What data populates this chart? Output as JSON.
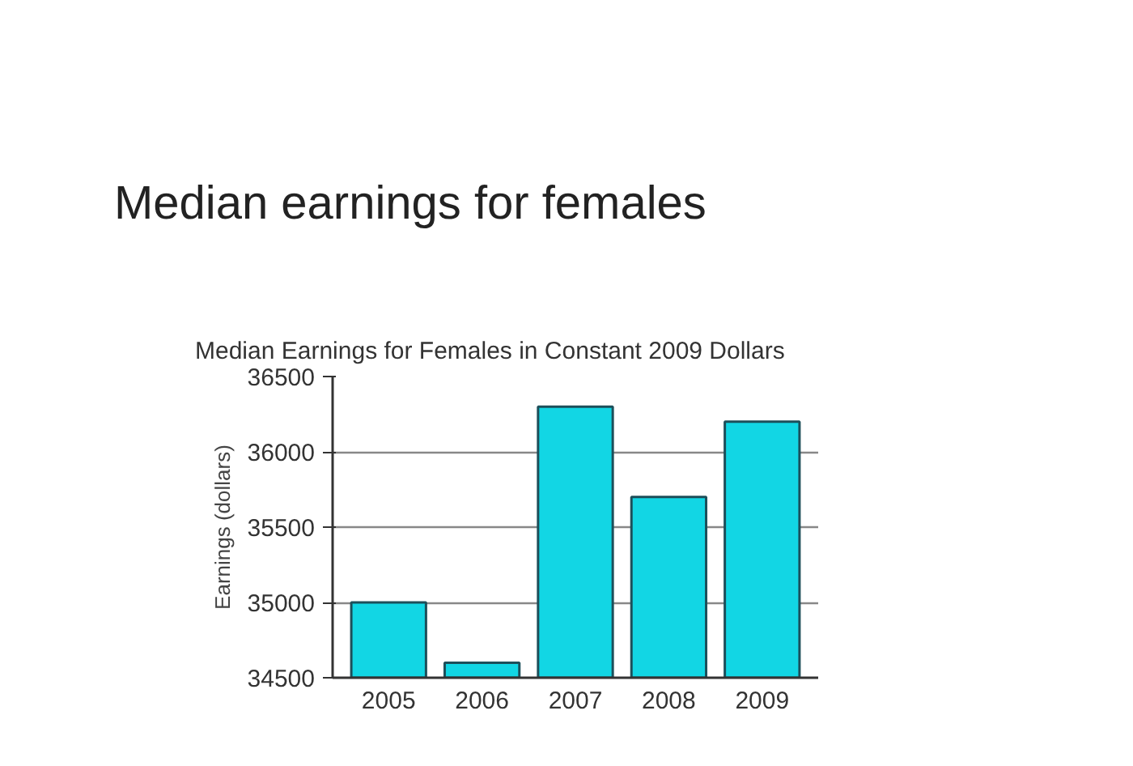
{
  "chart_data": {
    "type": "bar",
    "title": "Median earnings for females",
    "subtitle": "Median Earnings for Females in Constant 2009 Dollars",
    "ylabel": "Earnings (dollars)",
    "categories": [
      "2005",
      "2006",
      "2007",
      "2008",
      "2009"
    ],
    "values": [
      35000,
      34600,
      36300,
      35700,
      36200
    ],
    "color": "#12d6e4",
    "ylim": [
      34500,
      36500
    ],
    "yticks": [
      34500,
      35000,
      35500,
      36000,
      36500
    ],
    "grid": "y"
  }
}
